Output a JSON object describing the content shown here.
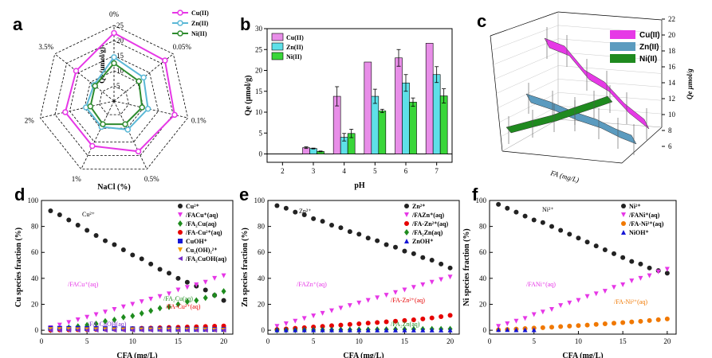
{
  "panels": {
    "a": {
      "label": "a",
      "type": "radar",
      "axes": [
        "0%",
        "0.05%",
        "0.1%",
        "0.5%",
        "1%",
        "2%",
        "3.5%"
      ],
      "rlabel": "Qe (μmol/g)",
      "xlabel": "NaCl (%)",
      "rticks": [
        "0",
        "5",
        "10",
        "15",
        "20",
        "25"
      ],
      "rmax": 25,
      "series": [
        {
          "name": "Cu(II)",
          "color": "#e637e6",
          "values": [
            22.5,
            21.5,
            20.5,
            18.5,
            16.5,
            16.5,
            16
          ]
        },
        {
          "name": "Zn(II)",
          "color": "#5bb8d6",
          "values": [
            14.5,
            12.5,
            11.5,
            10.5,
            9.5,
            9.5,
            8.5
          ]
        },
        {
          "name": "Ni(II)",
          "color": "#2e8b2e",
          "values": [
            12.5,
            10.5,
            9.5,
            8.5,
            8.5,
            8,
            8
          ]
        }
      ]
    },
    "b": {
      "label": "b",
      "type": "bar",
      "xlabel": "pH",
      "ylabel": "Qe (μmol/g)",
      "categories": [
        "2",
        "3",
        "4",
        "5",
        "6",
        "7"
      ],
      "ylim": [
        -2,
        30
      ],
      "yticks": [
        "0",
        "5",
        "10",
        "15",
        "20",
        "25",
        "30"
      ],
      "series": [
        {
          "name": "Cu(II)",
          "color": "#e88ee8",
          "values": [
            0,
            1.5,
            13.8,
            22.0,
            23.0,
            26.5
          ],
          "err": [
            0,
            0.2,
            2.3,
            0,
            2.0,
            0
          ]
        },
        {
          "name": "Zn(II)",
          "color": "#5ee0e8",
          "values": [
            0,
            1.3,
            4.0,
            13.8,
            17.0,
            19.0
          ],
          "err": [
            0,
            0.1,
            0.9,
            1.7,
            2.0,
            1.9
          ]
        },
        {
          "name": "Ni(II)",
          "color": "#39d639",
          "values": [
            0,
            0.6,
            4.9,
            10.3,
            12.4,
            13.9
          ],
          "err": [
            0,
            0.1,
            1.0,
            0.4,
            1.0,
            1.7
          ]
        }
      ]
    },
    "c": {
      "label": "c",
      "type": "line3d",
      "xlabel": "FA (mg/L)",
      "zlabel": "Qe μmol/g",
      "zticks": [
        "6",
        "8",
        "10",
        "12",
        "14",
        "16",
        "18",
        "20",
        "22"
      ],
      "series": [
        {
          "name": "Cu(II)",
          "color": "#e639e6"
        },
        {
          "name": "Zn(II)",
          "color": "#5b9bbf"
        },
        {
          "name": "Ni(II)",
          "color": "#1f8a1f"
        }
      ]
    },
    "d": {
      "label": "d",
      "type": "scatter",
      "xlabel": "CFA (mg/L)",
      "ylabel": "Cu species fraction (%)",
      "xlim": [
        0,
        21
      ],
      "ylim": [
        -3,
        100
      ],
      "xticks": [
        "0",
        "5",
        "10",
        "15",
        "20"
      ],
      "yticks": [
        "0",
        "20",
        "40",
        "60",
        "80",
        "100"
      ],
      "annotations": [
        {
          "text": "Cu²⁺",
          "color": "#000000"
        },
        {
          "text": "/FACu⁺(aq)",
          "color": "#e637e6"
        },
        {
          "text": "/FA₂Cu(aq)",
          "color": "#1e8c1e"
        },
        {
          "text": "/FA-Cu²⁺(aq)",
          "color": "#e60000"
        },
        {
          "text": "/FA₂CuOH(aq)",
          "color": "#7a2fc8"
        }
      ],
      "series": [
        {
          "name": "Cu²⁺",
          "color": "#222222",
          "marker": "circle",
          "x": [
            1,
            2,
            3,
            4,
            5,
            6,
            7,
            8,
            9,
            10,
            11,
            12,
            13,
            14,
            15,
            16,
            17,
            18,
            19,
            20
          ],
          "y": [
            92,
            89,
            85,
            81,
            77,
            73,
            69,
            66,
            62,
            58,
            55,
            51,
            47,
            44,
            40,
            37,
            34,
            31,
            27,
            23
          ]
        },
        {
          "name": "/FACu⁺(aq)",
          "color": "#e637e6",
          "marker": "tri-down",
          "x": [
            1,
            2,
            3,
            4,
            5,
            6,
            7,
            8,
            9,
            10,
            11,
            12,
            13,
            14,
            15,
            16,
            17,
            18,
            19,
            20
          ],
          "y": [
            2,
            4,
            6,
            8,
            10,
            12,
            14,
            16,
            18,
            20,
            22,
            24,
            26,
            28,
            31,
            33,
            35,
            37,
            40,
            42
          ]
        },
        {
          "name": "/FA₂Cu(aq)",
          "color": "#1e8c1e",
          "marker": "diamond",
          "x": [
            1,
            2,
            3,
            4,
            5,
            6,
            7,
            8,
            9,
            10,
            11,
            12,
            13,
            14,
            15,
            16,
            17,
            18,
            19,
            20
          ],
          "y": [
            0.2,
            1,
            2,
            3,
            4,
            5,
            7,
            8,
            10,
            11,
            13,
            15,
            17,
            18,
            20,
            22,
            23,
            25,
            27,
            30
          ]
        },
        {
          "name": "/FA-Cu²⁺(aq)",
          "color": "#e60000",
          "marker": "circle",
          "x": [
            1,
            2,
            3,
            4,
            5,
            6,
            7,
            8,
            9,
            10,
            11,
            12,
            13,
            14,
            15,
            16,
            17,
            18,
            19,
            20
          ],
          "y": [
            0.1,
            0.2,
            0.3,
            0.4,
            0.5,
            0.6,
            0.8,
            1,
            1.1,
            1.3,
            1.5,
            1.7,
            1.9,
            2.1,
            2.3,
            2.5,
            2.7,
            2.9,
            3.1,
            3.3
          ]
        },
        {
          "name": "CuOH⁺",
          "color": "#1515d6",
          "marker": "square",
          "x": [
            1,
            2,
            3,
            4,
            5,
            6,
            7,
            8,
            9,
            10,
            11,
            12,
            13,
            14,
            15,
            16,
            17,
            18,
            19,
            20
          ],
          "y": [
            1.5,
            1.5,
            1.4,
            1.4,
            1.3,
            1.3,
            1.2,
            1.2,
            1.1,
            1.1,
            1,
            1,
            0.9,
            0.9,
            0.8,
            0.8,
            0.7,
            0.7,
            0.6,
            0.6
          ]
        },
        {
          "name": "Cu₂(OH)₂²⁺",
          "color": "#f5a000",
          "marker": "tri-down",
          "x": [
            1,
            2,
            3,
            4,
            5,
            6,
            7,
            8,
            9,
            10,
            11,
            12,
            13,
            14,
            15,
            16,
            17,
            18,
            19,
            20
          ],
          "y": [
            0.5,
            0.5,
            0.5,
            0.4,
            0.4,
            0.4,
            0.4,
            0.3,
            0.3,
            0.3,
            0.3,
            0.3,
            0.2,
            0.2,
            0.2,
            0.2,
            0.2,
            0.2,
            0.1,
            0.1
          ]
        },
        {
          "name": "/FA₂CuOH(aq)",
          "color": "#7a2fc8",
          "marker": "tri-left",
          "x": [
            1,
            2,
            3,
            4,
            5,
            6,
            7,
            8,
            9,
            10,
            11,
            12,
            13,
            14,
            15,
            16,
            17,
            18,
            19,
            20
          ],
          "y": [
            0,
            0,
            0,
            0,
            0,
            0,
            0,
            0,
            0,
            0,
            0,
            0,
            0,
            0,
            0,
            0,
            0,
            0,
            0,
            0
          ]
        }
      ]
    },
    "e": {
      "label": "e",
      "type": "scatter",
      "xlabel": "CFA (mg/L)",
      "ylabel": "Zn species fraction (%)",
      "xlim": [
        0,
        21
      ],
      "ylim": [
        -3,
        100
      ],
      "xticks": [
        "0",
        "5",
        "10",
        "15",
        "20"
      ],
      "yticks": [
        "0",
        "20",
        "40",
        "60",
        "80",
        "100"
      ],
      "annotations": [
        {
          "text": "Zn²⁺",
          "color": "#000000"
        },
        {
          "text": "/FAZn⁺(aq)",
          "color": "#e637e6"
        },
        {
          "text": "/FA-Zn²⁺(aq)",
          "color": "#e60000"
        },
        {
          "text": "/FA₂Zn(aq)",
          "color": "#1e8c1e"
        }
      ],
      "series": [
        {
          "name": "Zn²⁺",
          "color": "#222222",
          "marker": "circle",
          "x": [
            1,
            2,
            3,
            4,
            5,
            6,
            7,
            8,
            9,
            10,
            11,
            12,
            13,
            14,
            15,
            16,
            17,
            18,
            19,
            20
          ],
          "y": [
            96,
            94,
            91,
            89,
            86,
            84,
            81,
            79,
            76,
            74,
            71,
            69,
            66,
            64,
            61,
            59,
            56,
            54,
            51,
            48
          ]
        },
        {
          "name": "/FAZn⁺(aq)",
          "color": "#e637e6",
          "marker": "tri-down",
          "x": [
            1,
            2,
            3,
            4,
            5,
            6,
            7,
            8,
            9,
            10,
            11,
            12,
            13,
            14,
            15,
            16,
            17,
            18,
            19,
            20
          ],
          "y": [
            3,
            5,
            7,
            9,
            11,
            13,
            15,
            17,
            19,
            21,
            23,
            25,
            27,
            29,
            31,
            33,
            35,
            37,
            39,
            41
          ]
        },
        {
          "name": "/FA-Zn²⁺(aq)",
          "color": "#e60000",
          "marker": "circle",
          "x": [
            1,
            2,
            3,
            4,
            5,
            6,
            7,
            8,
            9,
            10,
            11,
            12,
            13,
            14,
            15,
            16,
            17,
            18,
            19,
            20
          ],
          "y": [
            0.5,
            1,
            1.5,
            2,
            2.5,
            3,
            3.5,
            4,
            4.5,
            5,
            5.5,
            6,
            6.5,
            7,
            7.5,
            8,
            8.7,
            9.5,
            10.5,
            11.5
          ]
        },
        {
          "name": "/FA₂Zn(aq)",
          "color": "#1e8c1e",
          "marker": "diamond",
          "x": [
            1,
            2,
            3,
            4,
            5,
            6,
            7,
            8,
            9,
            10,
            11,
            12,
            13,
            14,
            15,
            16,
            17,
            18,
            19,
            20
          ],
          "y": [
            0,
            0.1,
            0.1,
            0.2,
            0.2,
            0.3,
            0.3,
            0.4,
            0.4,
            0.5,
            0.5,
            0.6,
            0.6,
            0.7,
            0.7,
            0.8,
            0.8,
            0.9,
            0.9,
            1
          ]
        },
        {
          "name": "ZnOH⁺",
          "color": "#1515d6",
          "marker": "tri-up",
          "x": [
            1,
            2,
            3,
            4,
            5,
            6,
            7,
            8,
            9,
            10,
            11,
            12,
            13,
            14,
            15,
            16,
            17,
            18,
            19,
            20
          ],
          "y": [
            0.3,
            0.3,
            0.3,
            0.3,
            0.3,
            0.3,
            0.3,
            0.3,
            0.3,
            0.3,
            0.2,
            0.2,
            0.2,
            0.2,
            0.2,
            0.2,
            0.2,
            0.2,
            0.2,
            0.2
          ]
        }
      ]
    },
    "f": {
      "label": "f",
      "type": "scatter",
      "xlabel": "CFA (mg/L)",
      "ylabel": "Ni species fraction (%)",
      "xlim": [
        0,
        21
      ],
      "ylim": [
        -3,
        100
      ],
      "xticks": [
        "0",
        "5",
        "10",
        "15",
        "20"
      ],
      "yticks": [
        "0",
        "20",
        "40",
        "60",
        "80",
        "100"
      ],
      "annotations": [
        {
          "text": "Ni²⁺",
          "color": "#000000"
        },
        {
          "text": "/FANi⁺(aq)",
          "color": "#e637e6"
        },
        {
          "text": "/FA-Ni²⁺(aq)",
          "color": "#f07800"
        }
      ],
      "series": [
        {
          "name": "Ni²⁺",
          "color": "#222222",
          "marker": "circle",
          "x": [
            1,
            2,
            3,
            4,
            5,
            6,
            7,
            8,
            9,
            10,
            11,
            12,
            13,
            14,
            15,
            16,
            17,
            18,
            19,
            20
          ],
          "y": [
            97,
            94,
            91,
            88,
            85,
            83,
            80,
            77,
            74,
            71,
            68,
            65,
            62,
            59,
            56,
            53,
            51,
            48,
            46,
            44
          ]
        },
        {
          "name": "/FANi⁺(aq)",
          "color": "#e637e6",
          "marker": "tri-down",
          "x": [
            1,
            2,
            3,
            4,
            5,
            6,
            7,
            8,
            9,
            10,
            11,
            12,
            13,
            14,
            15,
            16,
            17,
            18,
            19,
            20
          ],
          "y": [
            3,
            5,
            7,
            9,
            12,
            14,
            16,
            19,
            21,
            23,
            26,
            28,
            30,
            33,
            35,
            38,
            40,
            42,
            45,
            47
          ]
        },
        {
          "name": "/FA-Ni²⁺(aq)",
          "color": "#f07800",
          "marker": "circle",
          "x": [
            1,
            2,
            3,
            4,
            5,
            6,
            7,
            8,
            9,
            10,
            11,
            12,
            13,
            14,
            15,
            16,
            17,
            18,
            19,
            20
          ],
          "y": [
            0.3,
            0.6,
            0.9,
            1.3,
            1.7,
            2,
            2.4,
            2.8,
            3.2,
            3.6,
            4,
            4.5,
            5,
            5.4,
            5.9,
            6.4,
            6.9,
            7.5,
            8.1,
            8.7
          ]
        },
        {
          "name": "NiOH⁺",
          "color": "#1515d6",
          "marker": "tri-up",
          "x": [
            1,
            2,
            3,
            4,
            5
          ],
          "y": [
            0.5,
            0.5,
            0.4,
            0.4,
            0.4
          ]
        }
      ]
    }
  }
}
